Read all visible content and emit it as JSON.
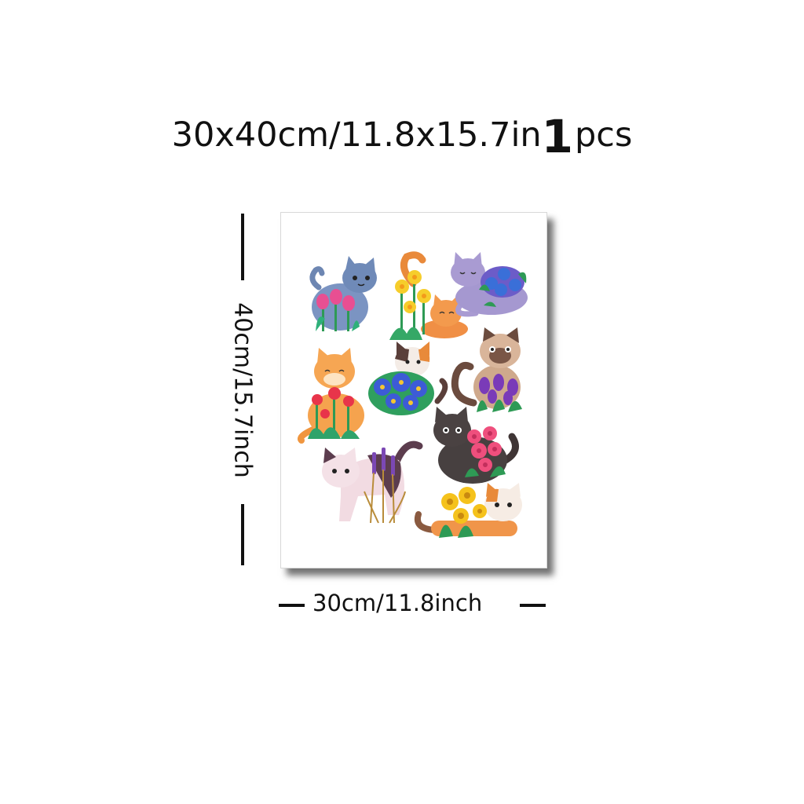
{
  "header": {
    "size_text": "30x40cm/11.8x15.7in",
    "quantity": "1",
    "unit": "pcs"
  },
  "dimensions": {
    "height_label": "40cm/15.7inch",
    "width_label": "30cm/11.8inch"
  },
  "colors": {
    "text": "#111111",
    "canvas": "#ffffff"
  },
  "artwork": [
    {
      "cat": "blue-gray",
      "flower": "pink tulips"
    },
    {
      "cat": "orange tabby",
      "flower": "yellow daffodils"
    },
    {
      "cat": "lavender gray",
      "flower": "purple hydrangea"
    },
    {
      "cat": "ginger",
      "flower": "red wildflowers"
    },
    {
      "cat": "calico",
      "flower": "blue pansies"
    },
    {
      "cat": "siamese",
      "flower": "purple crocus"
    },
    {
      "cat": "pink and brown",
      "flower": "lavender"
    },
    {
      "cat": "dark brown",
      "flower": "pink roses"
    },
    {
      "cat": "orange and white",
      "flower": "yellow daisies"
    }
  ]
}
